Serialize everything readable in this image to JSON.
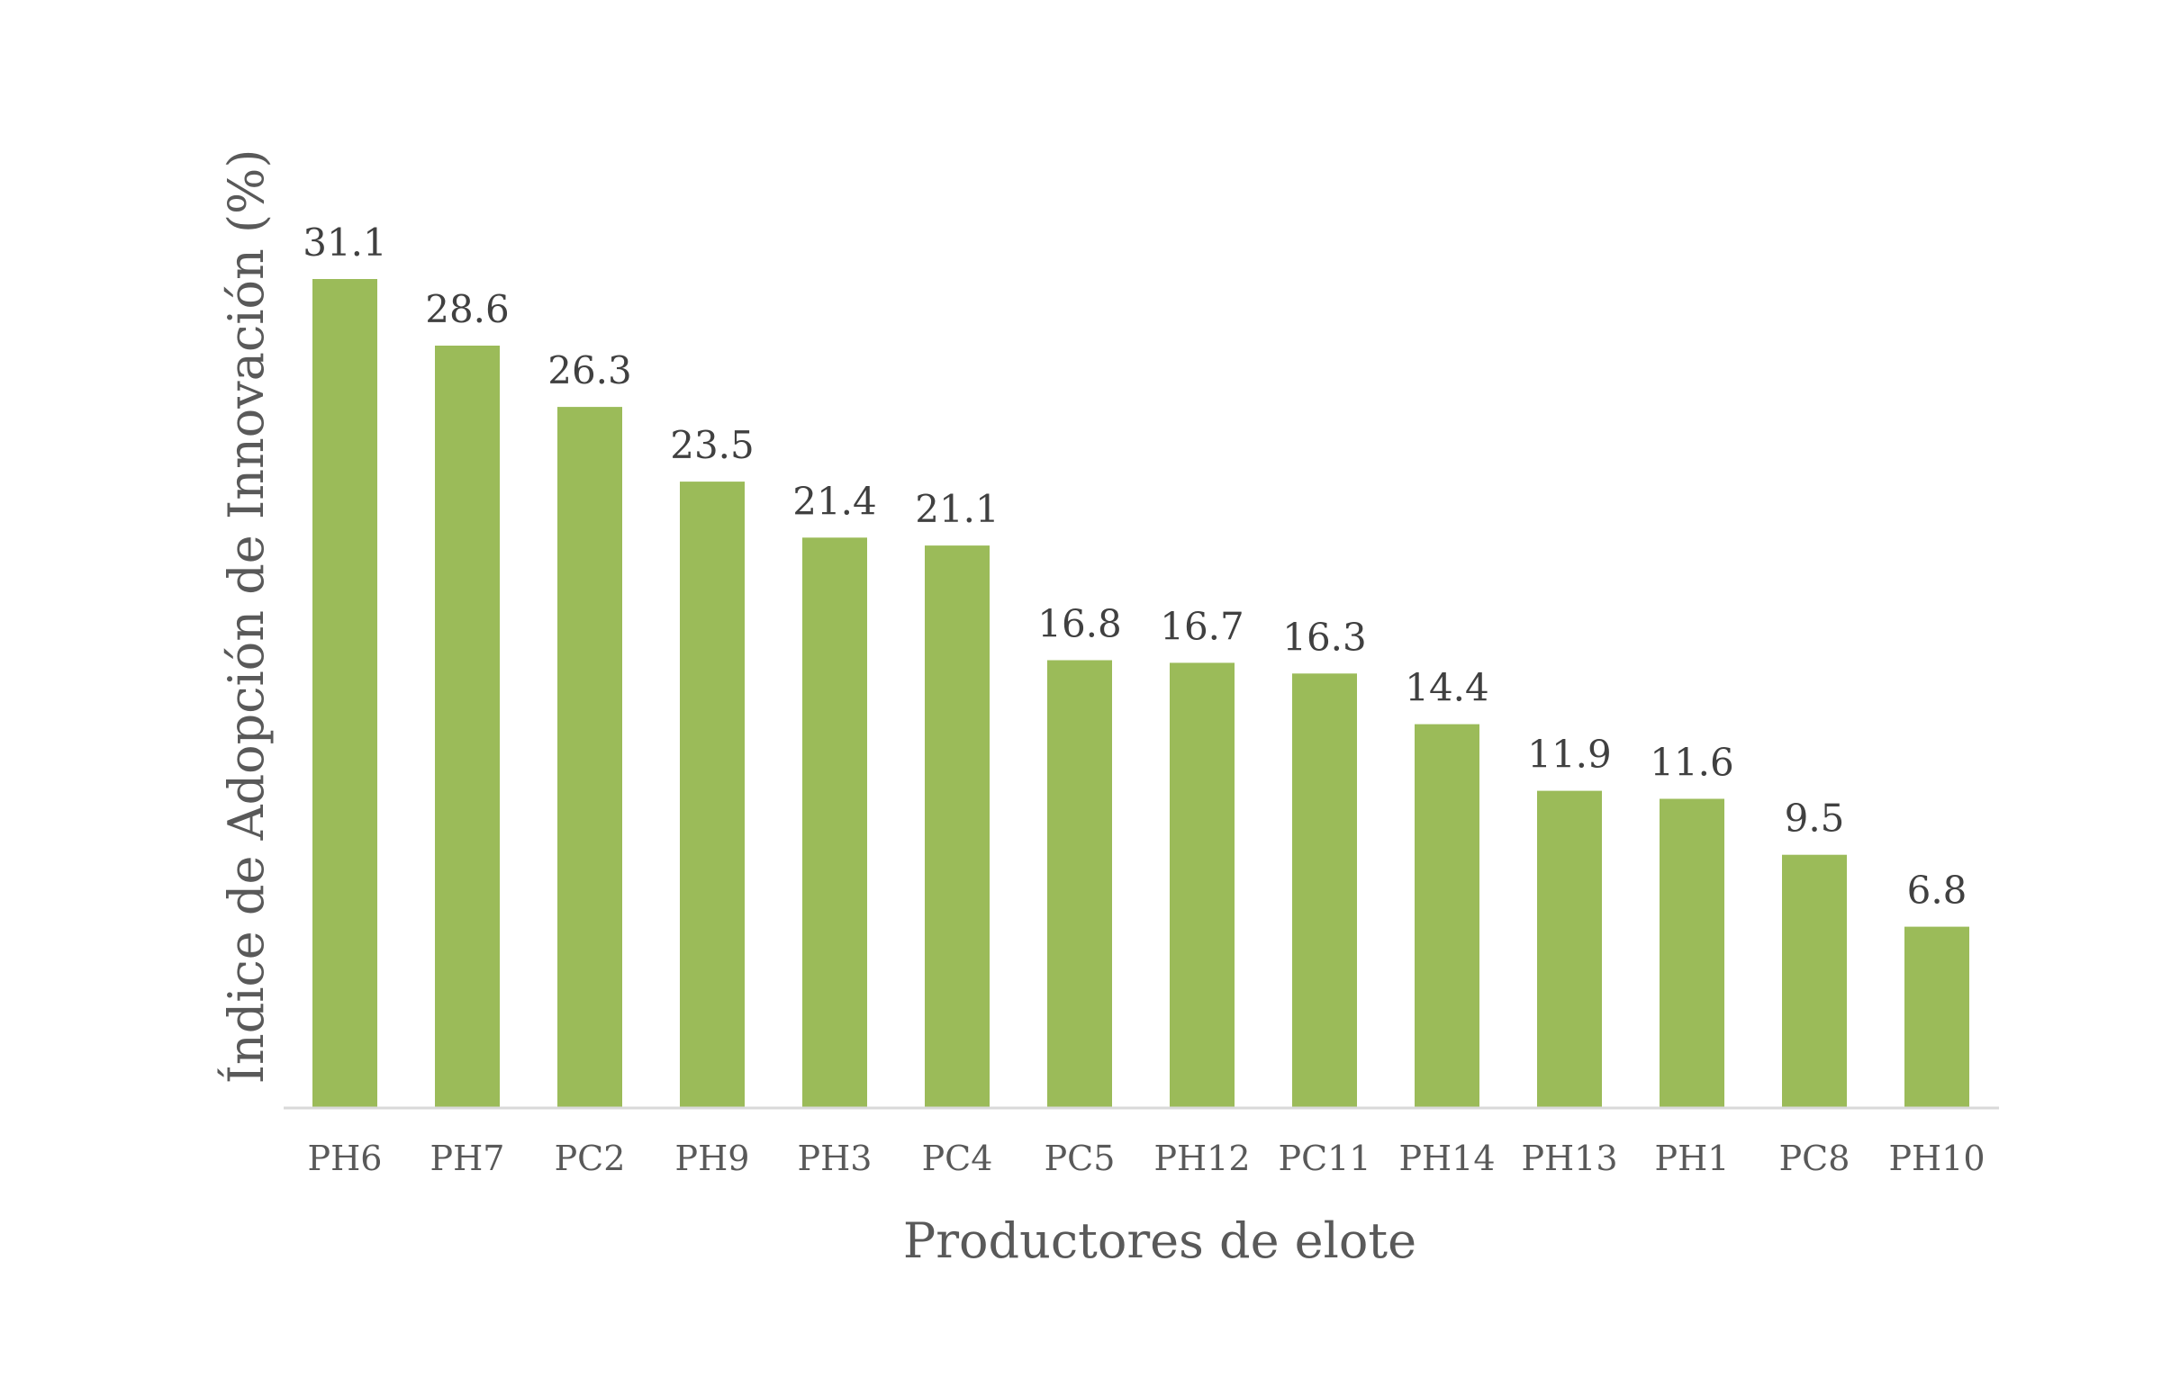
{
  "chart_data": {
    "type": "bar",
    "categories": [
      "PH6",
      "PH7",
      "PC2",
      "PH9",
      "PH3",
      "PC4",
      "PC5",
      "PH12",
      "PC11",
      "PH14",
      "PH13",
      "PH1",
      "PC8",
      "PH10"
    ],
    "values": [
      31.1,
      28.6,
      26.3,
      23.5,
      21.4,
      21.1,
      16.8,
      16.7,
      16.3,
      14.4,
      11.9,
      11.6,
      9.5,
      6.8
    ],
    "value_labels": [
      "31.1",
      "28.6",
      "26.3",
      "23.5",
      "21.4",
      "21.1",
      "16.8",
      "16.7",
      "16.3",
      "14.4",
      "11.9",
      "11.6",
      "9.5",
      "6.8"
    ],
    "xlabel": "Productores de elote",
    "ylabel": "Índice de Adopción de Innovación (%)",
    "ylim": [
      0,
      31.1
    ],
    "grid": false,
    "legend": "none",
    "bar_color": "#9BBB59"
  }
}
